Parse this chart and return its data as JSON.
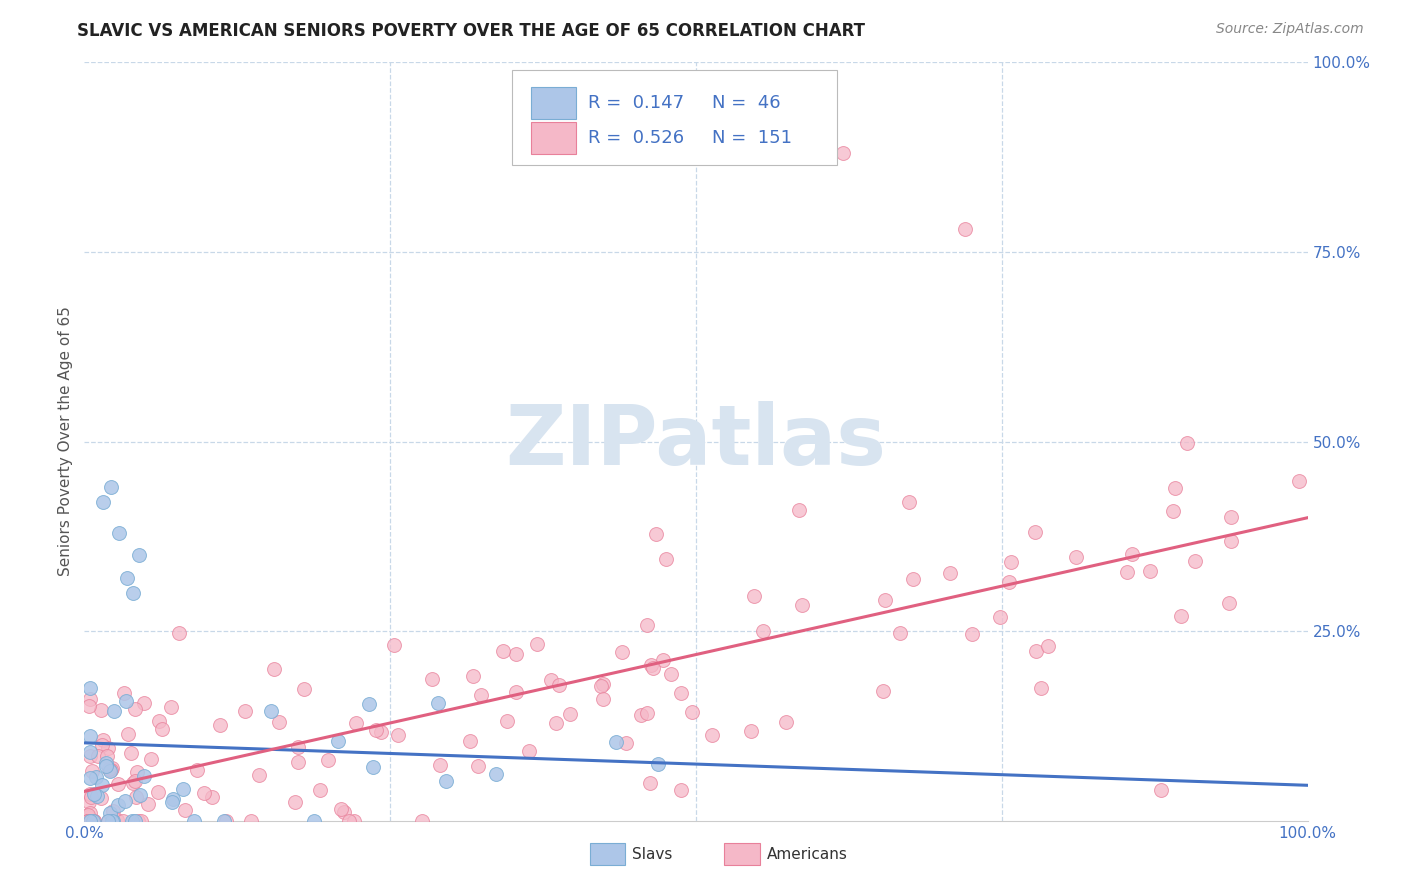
{
  "title": "SLAVIC VS AMERICAN SENIORS POVERTY OVER THE AGE OF 65 CORRELATION CHART",
  "source": "Source: ZipAtlas.com",
  "ylabel": "Seniors Poverty Over the Age of 65",
  "slavs_color": "#adc6e8",
  "slavs_edge": "#7aadd4",
  "americans_color": "#f5b8c8",
  "americans_edge": "#e8809a",
  "trend_slavs_color": "#4472c4",
  "trend_americans_color": "#e06080",
  "xlim": [
    0,
    1
  ],
  "ylim": [
    0,
    1
  ],
  "grid_color": "#c8d8e8",
  "background_color": "#ffffff",
  "title_fontsize": 12,
  "source_fontsize": 10,
  "axis_label_fontsize": 11,
  "legend_fontsize": 13,
  "tick_fontsize": 11,
  "tick_color": "#4472c4",
  "watermark_color": "#d8e4f0"
}
